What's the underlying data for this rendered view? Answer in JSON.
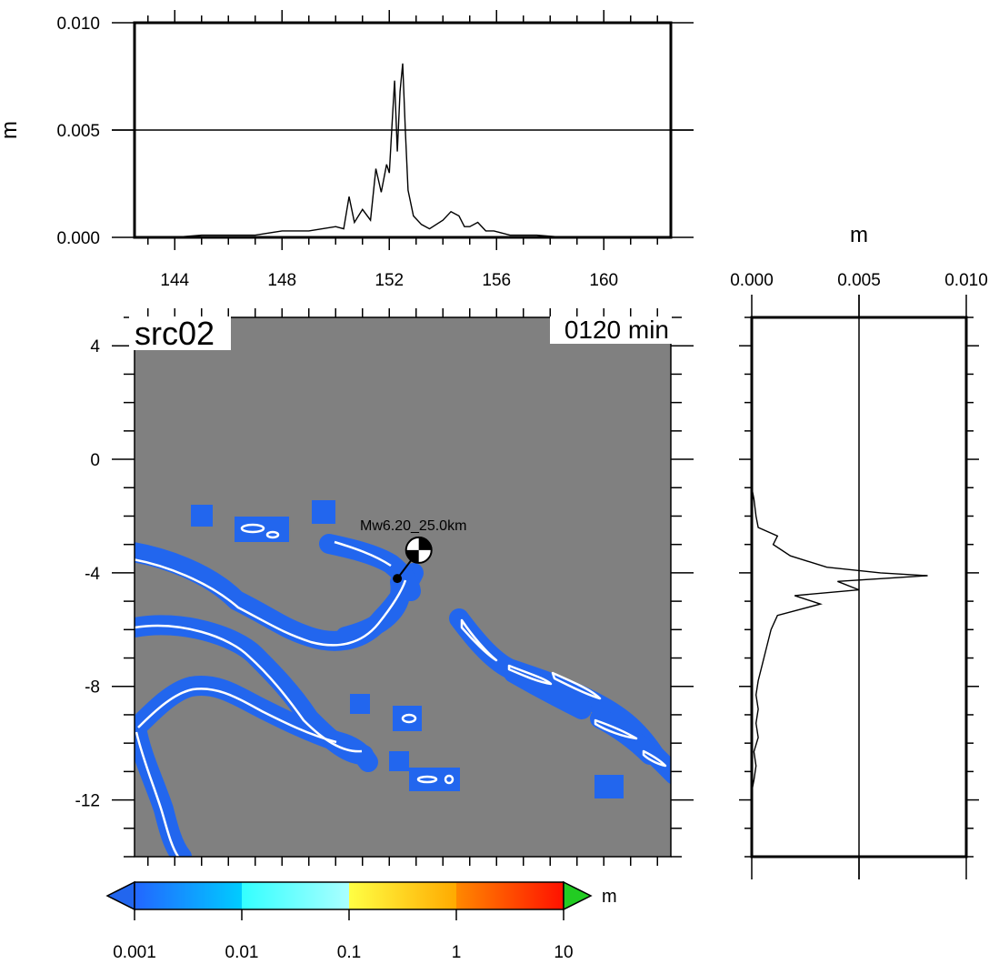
{
  "map": {
    "title": "src02",
    "time_label": "0120 min",
    "event_label": "Mw6.20_25.0km",
    "lon_range": [
      142.5,
      162.5
    ],
    "lat_range": [
      -14,
      5
    ],
    "lat_ticks": [
      {
        "value": 4,
        "label": "4"
      },
      {
        "value": 0,
        "label": "0"
      },
      {
        "value": -4,
        "label": "-4"
      },
      {
        "value": -8,
        "label": "-8"
      },
      {
        "value": -12,
        "label": "-12"
      }
    ],
    "background_color": "#808080",
    "max_height_color": "#2266ee",
    "coastline_color": "#ffffff",
    "epicenter": {
      "lon": 152.3,
      "lat": -4.2
    },
    "mechanism_symbol": {
      "lon": 153.1,
      "lat": -3.2,
      "icon": "beachball-icon"
    }
  },
  "top_profile": {
    "axis_label": "m",
    "y_ticks": [
      {
        "value": 0.01,
        "label": "0.010"
      },
      {
        "value": 0.005,
        "label": "0.005"
      },
      {
        "value": 0.0,
        "label": "0.000"
      }
    ],
    "x_ticks": [
      {
        "value": 144,
        "label": "144"
      },
      {
        "value": 148,
        "label": "148"
      },
      {
        "value": 152,
        "label": "152"
      },
      {
        "value": 156,
        "label": "156"
      },
      {
        "value": 160,
        "label": "160"
      }
    ]
  },
  "right_profile": {
    "axis_label": "m",
    "x_ticks": [
      {
        "value": 0.0,
        "label": "0.000"
      },
      {
        "value": 0.005,
        "label": "0.005"
      },
      {
        "value": 0.01,
        "label": "0.010"
      }
    ]
  },
  "colorbar": {
    "unit": "m",
    "labels": [
      "0.001",
      "0.01",
      "0.1",
      "1",
      "10"
    ],
    "under_color": "#2266ee",
    "over_color": "#22cc22"
  },
  "chart_data": [
    {
      "type": "line",
      "title": "",
      "xlabel": "",
      "ylabel": "m",
      "xlim": [
        142.5,
        162.5
      ],
      "ylim": [
        0,
        0.01
      ],
      "reference_line": 0.005,
      "x": [
        144,
        145,
        146,
        147,
        148,
        149,
        149.5,
        150,
        150.3,
        150.5,
        150.7,
        151,
        151.3,
        151.5,
        151.7,
        151.9,
        152.0,
        152.1,
        152.2,
        152.3,
        152.4,
        152.5,
        152.6,
        152.7,
        152.9,
        153.2,
        153.5,
        154,
        154.3,
        154.6,
        154.8,
        155,
        155.3,
        155.6,
        155.9,
        156.5,
        157.5,
        158.5,
        159.5,
        160.5
      ],
      "y": [
        0.0,
        0.0001,
        0.0001,
        0.0001,
        0.0003,
        0.0003,
        0.0004,
        0.0005,
        0.0004,
        0.0019,
        0.0007,
        0.0013,
        0.0008,
        0.0032,
        0.0021,
        0.0034,
        0.003,
        0.0052,
        0.0073,
        0.004,
        0.0068,
        0.0081,
        0.005,
        0.0022,
        0.001,
        0.0006,
        0.0004,
        0.0008,
        0.0012,
        0.001,
        0.0005,
        0.0005,
        0.0007,
        0.0003,
        0.0003,
        0.0001,
        0.0001,
        0.0,
        0.0,
        0.0
      ]
    },
    {
      "type": "line",
      "title": "",
      "xlabel": "m",
      "ylabel": "",
      "xlim": [
        0,
        0.01
      ],
      "ylim": [
        -14,
        5
      ],
      "reference_line": 0.005,
      "x": [
        0.0,
        0.0001,
        0.0002,
        0.0003,
        0.0012,
        0.001,
        0.0018,
        0.0035,
        0.006,
        0.0082,
        0.004,
        0.005,
        0.002,
        0.0032,
        0.0012,
        0.0009,
        0.0007,
        0.0005,
        0.0003,
        0.0002,
        0.0003,
        0.0002,
        0.0003,
        0.0001,
        0.0002,
        0.0001,
        0.0
      ],
      "y": [
        -1.0,
        -1.4,
        -2.0,
        -2.4,
        -2.7,
        -3.0,
        -3.4,
        -3.8,
        -4.0,
        -4.1,
        -4.3,
        -4.6,
        -4.8,
        -5.1,
        -5.5,
        -6.0,
        -6.6,
        -7.2,
        -7.8,
        -8.3,
        -8.8,
        -9.3,
        -9.8,
        -10.3,
        -10.8,
        -11.3,
        -11.7
      ]
    }
  ]
}
